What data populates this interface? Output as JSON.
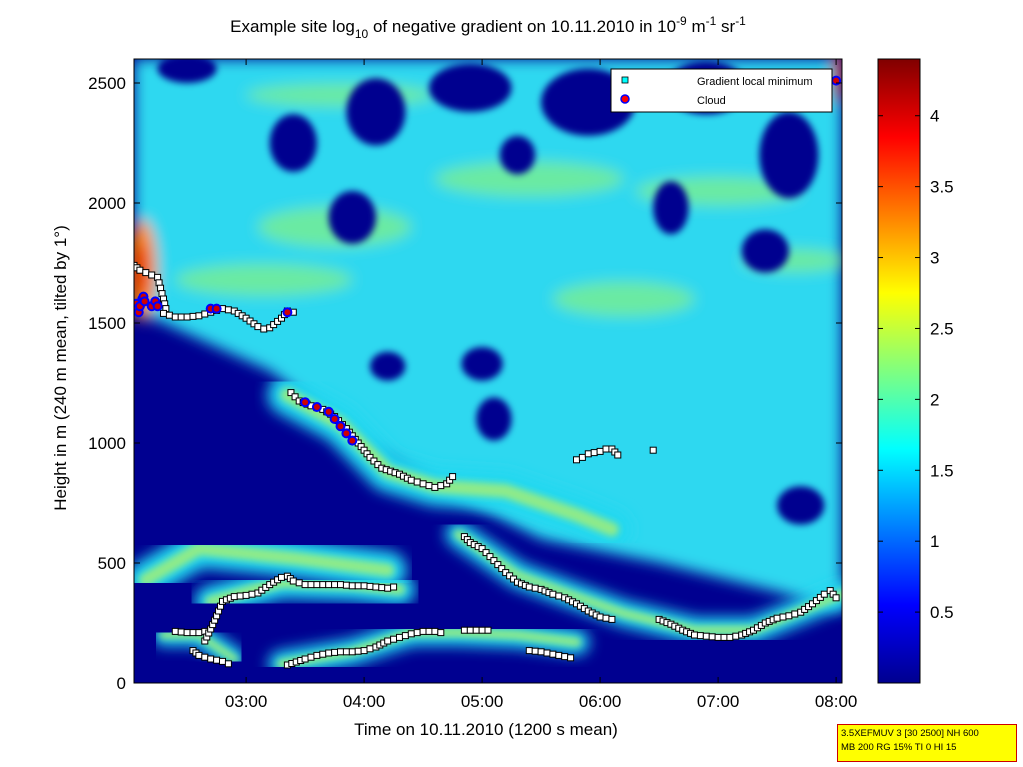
{
  "chart_data": {
    "type": "heatmap",
    "title": {
      "prefix": "Example site log",
      "sub": "10",
      "mid": " of negative gradient on 10.11.2010 in 10",
      "sup1": "-9",
      "m_unit": " m",
      "sup2": "-1",
      "sr_unit": " sr",
      "sup3": "-1"
    },
    "xlabel": "Time on 10.11.2010 (1200 s mean)",
    "ylabel": "Height in m (240 m mean, tilted by 1°)",
    "xlim": [
      2.05,
      8.05
    ],
    "ylim": [
      0,
      2600
    ],
    "x_ticks": [
      {
        "value": 3,
        "label": "03:00"
      },
      {
        "value": 4,
        "label": "04:00"
      },
      {
        "value": 5,
        "label": "05:00"
      },
      {
        "value": 6,
        "label": "06:00"
      },
      {
        "value": 7,
        "label": "07:00"
      },
      {
        "value": 8,
        "label": "08:00"
      }
    ],
    "y_ticks": [
      {
        "value": 0,
        "label": "0"
      },
      {
        "value": 500,
        "label": "500"
      },
      {
        "value": 1000,
        "label": "1000"
      },
      {
        "value": 1500,
        "label": "1500"
      },
      {
        "value": 2000,
        "label": "2000"
      },
      {
        "value": 2500,
        "label": "2500"
      }
    ],
    "colorbar": {
      "range": [
        0,
        4.4
      ],
      "colormap": "jet",
      "ticks": [
        {
          "value": 0.5,
          "label": "0.5"
        },
        {
          "value": 1,
          "label": "1"
        },
        {
          "value": 1.5,
          "label": "1.5"
        },
        {
          "value": 2,
          "label": "2"
        },
        {
          "value": 2.5,
          "label": "2.5"
        },
        {
          "value": 3,
          "label": "3"
        },
        {
          "value": 3.5,
          "label": "3.5"
        },
        {
          "value": 4,
          "label": "4"
        }
      ]
    },
    "legend": {
      "placement": "top-right",
      "entries": [
        {
          "label": "Gradient local minimum",
          "marker": "square",
          "color": "#00ffff"
        },
        {
          "label": "Cloud",
          "marker": "circle",
          "color": "#ff0000",
          "edge": "#0000ff"
        }
      ]
    },
    "series": [
      {
        "name": "Gradient local minimum",
        "marker": "square",
        "segments": [
          [
            [
              2.05,
              1740
            ],
            [
              2.1,
              1720
            ],
            [
              2.15,
              1710
            ],
            [
              2.2,
              1700
            ],
            [
              2.25,
              1690
            ],
            [
              2.3,
              1600
            ],
            [
              2.32,
              1560
            ]
          ],
          [
            [
              2.3,
              1540
            ],
            [
              2.4,
              1525
            ],
            [
              2.5,
              1525
            ],
            [
              2.6,
              1530
            ],
            [
              2.7,
              1545
            ],
            [
              2.8,
              1560
            ],
            [
              2.9,
              1550
            ],
            [
              3.0,
              1520
            ],
            [
              3.1,
              1485
            ],
            [
              3.15,
              1475
            ],
            [
              3.2,
              1480
            ],
            [
              3.3,
              1520
            ],
            [
              3.35,
              1550
            ],
            [
              3.4,
              1545
            ]
          ],
          [
            [
              3.38,
              1210
            ],
            [
              3.45,
              1175
            ],
            [
              3.55,
              1155
            ],
            [
              3.65,
              1140
            ],
            [
              3.75,
              1110
            ],
            [
              3.85,
              1060
            ],
            [
              3.95,
              1000
            ],
            [
              4.05,
              940
            ],
            [
              4.15,
              895
            ],
            [
              4.3,
              870
            ],
            [
              4.4,
              845
            ],
            [
              4.5,
              830
            ],
            [
              4.6,
              815
            ],
            [
              4.7,
              830
            ],
            [
              4.75,
              860
            ]
          ],
          [
            [
              5.8,
              930
            ],
            [
              5.85,
              940
            ],
            [
              5.9,
              955
            ],
            [
              6.0,
              965
            ],
            [
              6.05,
              975
            ],
            [
              6.1,
              975
            ],
            [
              6.15,
              950
            ]
          ],
          [
            [
              6.45,
              970
            ]
          ],
          [
            [
              4.85,
              610
            ],
            [
              4.9,
              585
            ],
            [
              5.0,
              560
            ],
            [
              5.1,
              510
            ],
            [
              5.2,
              460
            ],
            [
              5.3,
              420
            ],
            [
              5.4,
              400
            ],
            [
              5.5,
              390
            ],
            [
              5.6,
              370
            ],
            [
              5.7,
              355
            ],
            [
              5.8,
              330
            ],
            [
              5.9,
              300
            ],
            [
              6.0,
              275
            ],
            [
              6.1,
              265
            ]
          ],
          [
            [
              6.5,
              265
            ],
            [
              6.6,
              245
            ],
            [
              6.7,
              220
            ],
            [
              6.8,
              200
            ],
            [
              6.9,
              195
            ],
            [
              7.0,
              190
            ],
            [
              7.1,
              190
            ],
            [
              7.2,
              200
            ],
            [
              7.3,
              220
            ],
            [
              7.4,
              250
            ],
            [
              7.5,
              270
            ],
            [
              7.6,
              280
            ],
            [
              7.7,
              295
            ],
            [
              7.8,
              330
            ],
            [
              7.9,
              370
            ],
            [
              7.95,
              385
            ],
            [
              8.0,
              355
            ]
          ],
          [
            [
              2.4,
              215
            ],
            [
              2.5,
              210
            ],
            [
              2.6,
              210
            ],
            [
              2.65,
              215
            ]
          ],
          [
            [
              2.65,
              175
            ],
            [
              2.7,
              225
            ],
            [
              2.75,
              280
            ],
            [
              2.8,
              340
            ],
            [
              2.9,
              360
            ],
            [
              3.0,
              365
            ],
            [
              3.1,
              375
            ],
            [
              3.2,
              410
            ],
            [
              3.3,
              440
            ],
            [
              3.35,
              445
            ],
            [
              3.4,
              425
            ],
            [
              3.5,
              410
            ],
            [
              3.6,
              410
            ],
            [
              3.7,
              410
            ],
            [
              3.8,
              410
            ],
            [
              3.9,
              405
            ],
            [
              4.0,
              405
            ],
            [
              4.1,
              400
            ],
            [
              4.2,
              395
            ],
            [
              4.25,
              400
            ]
          ],
          [
            [
              2.55,
              135
            ],
            [
              2.6,
              115
            ],
            [
              2.7,
              100
            ],
            [
              2.8,
              90
            ],
            [
              2.85,
              80
            ]
          ],
          [
            [
              3.35,
              75
            ],
            [
              3.5,
              100
            ],
            [
              3.6,
              115
            ],
            [
              3.7,
              125
            ],
            [
              3.8,
              130
            ],
            [
              3.9,
              130
            ],
            [
              4.0,
              135
            ],
            [
              4.1,
              150
            ],
            [
              4.2,
              175
            ],
            [
              4.3,
              190
            ],
            [
              4.4,
              205
            ],
            [
              4.5,
              215
            ],
            [
              4.6,
              215
            ],
            [
              4.65,
              210
            ]
          ],
          [
            [
              4.85,
              220
            ],
            [
              4.95,
              220
            ],
            [
              5.05,
              220
            ]
          ],
          [
            [
              5.4,
              135
            ],
            [
              5.5,
              130
            ],
            [
              5.6,
              120
            ],
            [
              5.7,
              110
            ],
            [
              5.75,
              105
            ]
          ]
        ]
      },
      {
        "name": "Cloud",
        "marker": "circle",
        "points": [
          [
            2.07,
            1580
          ],
          [
            2.08,
            1560
          ],
          [
            2.09,
            1545
          ],
          [
            2.1,
            1570
          ],
          [
            2.12,
            1600
          ],
          [
            2.13,
            1610
          ],
          [
            2.14,
            1590
          ],
          [
            2.2,
            1570
          ],
          [
            2.23,
            1590
          ],
          [
            2.25,
            1570
          ],
          [
            2.7,
            1560
          ],
          [
            2.75,
            1560
          ],
          [
            3.35,
            1545
          ],
          [
            3.5,
            1170
          ],
          [
            3.6,
            1150
          ],
          [
            3.7,
            1130
          ],
          [
            3.75,
            1100
          ],
          [
            3.8,
            1070
          ],
          [
            3.85,
            1040
          ],
          [
            3.9,
            1010
          ],
          [
            8.0,
            2510
          ]
        ]
      }
    ],
    "heatmap_description_features": [
      {
        "kind": "boundary_layer_top",
        "from": [
          2.3,
          1550
        ],
        "to": [
          8.05,
          300
        ]
      }
    ]
  },
  "meta_box": {
    "line1": "3.5XEFMUV 3 [30 2500] NH 600",
    "line2": "MB 200 RG 15% TI 0 HI 15"
  }
}
